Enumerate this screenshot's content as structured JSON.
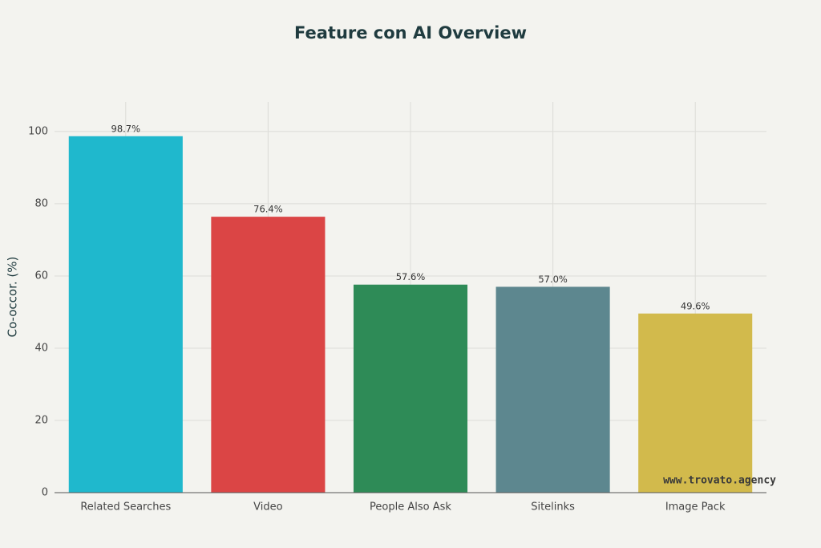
{
  "chart_data": {
    "type": "bar",
    "title": "Feature con AI Overview",
    "y_label": "Co-occor. (%)",
    "categories": [
      "Related Searches",
      "Video",
      "People Also Ask",
      "Sitelinks",
      "Image Pack"
    ],
    "values": [
      98.7,
      76.4,
      57.6,
      57.0,
      49.6
    ],
    "value_labels": [
      "98.7%",
      "76.4%",
      "57.6%",
      "57.0%",
      "49.6%"
    ],
    "colors": [
      "#1fb8cd",
      "#db4545",
      "#2e8b57",
      "#5d878f",
      "#d2ba4c"
    ],
    "ylim": [
      0,
      108.2
    ],
    "yticks": [
      0,
      20,
      40,
      60,
      80,
      100
    ],
    "grid": true,
    "annotation": "www.trovato.agency"
  }
}
